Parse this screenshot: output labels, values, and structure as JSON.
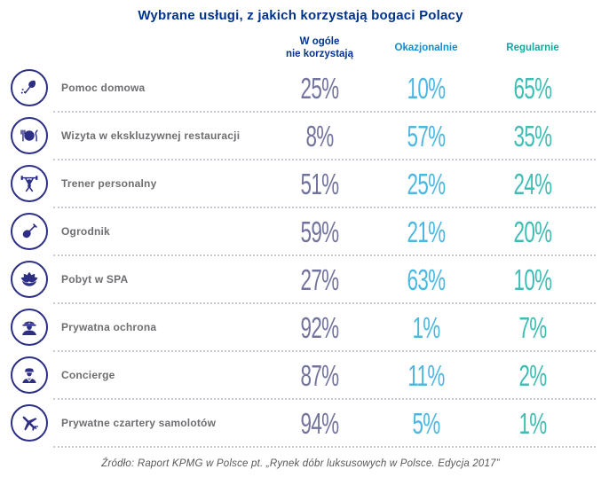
{
  "title": "Wybrane usługi, z jakich korzystają bogaci Polacy",
  "columns": [
    {
      "label": "W ogóle\nnie korzystają",
      "color": "#00338D"
    },
    {
      "label": "Okazjonalnie",
      "color": "#0E8FD5"
    },
    {
      "label": "Regularnie",
      "color": "#13A89E"
    }
  ],
  "rows": [
    {
      "icon": "duster-icon",
      "label": "Pomoc domowa",
      "values": [
        "25%",
        "10%",
        "65%"
      ]
    },
    {
      "icon": "restaurant-icon",
      "label": "Wizyta w ekskluzywnej restauracji",
      "values": [
        "8%",
        "57%",
        "35%"
      ]
    },
    {
      "icon": "trainer-icon",
      "label": "Trener personalny",
      "values": [
        "51%",
        "25%",
        "24%"
      ]
    },
    {
      "icon": "shovel-icon",
      "label": "Ogrodnik",
      "values": [
        "59%",
        "21%",
        "20%"
      ]
    },
    {
      "icon": "lotus-icon",
      "label": "Pobyt w SPA",
      "values": [
        "27%",
        "63%",
        "10%"
      ]
    },
    {
      "icon": "guard-icon",
      "label": "Prywatna ochrona",
      "values": [
        "92%",
        "1%",
        "7%"
      ]
    },
    {
      "icon": "concierge-icon",
      "label": "Concierge",
      "values": [
        "87%",
        "11%",
        "2%"
      ]
    },
    {
      "icon": "airplane-icon",
      "label": "Prywatne czartery samolotów",
      "values": [
        "94%",
        "5%",
        "1%"
      ]
    }
  ],
  "source": "Źródło: Raport KPMG w Polsce pt. „Rynek dóbr luksusowych w Polsce. Edycja 2017”",
  "colors": {
    "title": "#00338D",
    "icon": "#2D2F84",
    "label": "#6D6E71",
    "value_never": "#72749E",
    "value_occasionally": "#4CB8E2",
    "value_regularly": "#40BDB3",
    "separator": "#C9C9D3",
    "source_text": "#57585A"
  },
  "chart_data": {
    "type": "table",
    "title": "Wybrane usługi, z jakich korzystają bogaci Polacy",
    "categories": [
      "Pomoc domowa",
      "Wizyta w ekskluzywnej restauracji",
      "Trener personalny",
      "Ogrodnik",
      "Pobyt w SPA",
      "Prywatna ochrona",
      "Concierge",
      "Prywatne czartery samolotów"
    ],
    "series": [
      {
        "name": "W ogóle nie korzystają",
        "values": [
          25,
          8,
          51,
          59,
          27,
          92,
          87,
          94
        ]
      },
      {
        "name": "Okazjonalnie",
        "values": [
          10,
          57,
          25,
          21,
          63,
          1,
          11,
          5
        ]
      },
      {
        "name": "Regularnie",
        "values": [
          65,
          35,
          24,
          20,
          10,
          7,
          2,
          1
        ]
      }
    ],
    "unit": "%",
    "source": "Źródło: Raport KPMG w Polsce pt. „Rynek dóbr luksusowych w Polsce. Edycja 2017”"
  }
}
